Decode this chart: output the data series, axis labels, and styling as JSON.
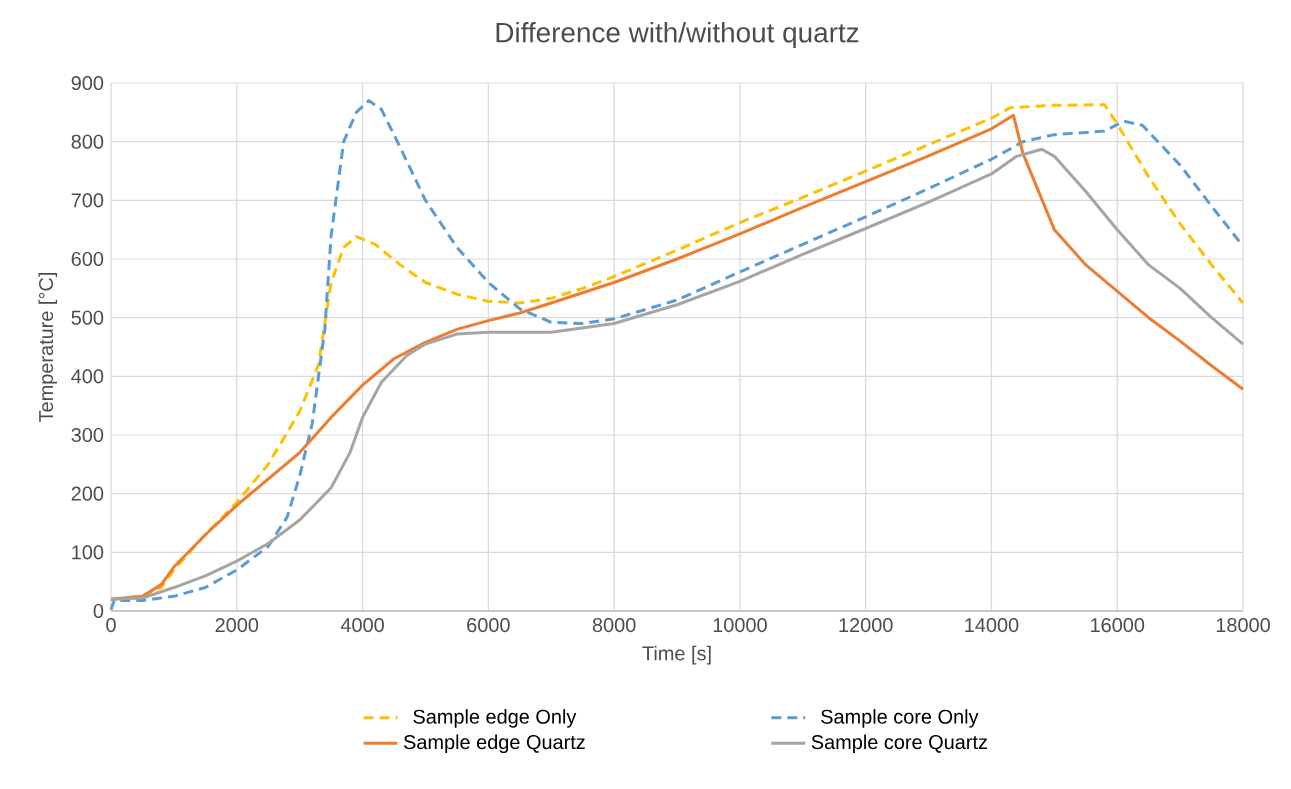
{
  "chart_data": {
    "type": "line",
    "title": "Difference with/without quartz",
    "xlabel": "Time [s]",
    "ylabel": "Temperature [°C]",
    "xlim": [
      0,
      18000
    ],
    "xticks": [
      0,
      2000,
      4000,
      6000,
      8000,
      10000,
      12000,
      14000,
      16000,
      18000
    ],
    "ylim": [
      0,
      900
    ],
    "yticks": [
      0,
      100,
      200,
      300,
      400,
      500,
      600,
      700,
      800,
      900
    ],
    "grid": true,
    "legend": "bottom",
    "marker": "none",
    "series": [
      {
        "name": "Sample edge Only",
        "color": "#ffc000",
        "line_style": "dashed",
        "x": [
          0,
          500,
          800,
          1000,
          1500,
          2000,
          2500,
          3000,
          3300,
          3500,
          3700,
          3900,
          4200,
          4600,
          5000,
          5500,
          6000,
          6500,
          7000,
          7500,
          8000,
          9000,
          10000,
          11000,
          12000,
          13000,
          14000,
          14300,
          15000,
          15800,
          16000,
          16500,
          17000,
          17500,
          18000
        ],
        "values": [
          20,
          25,
          40,
          70,
          130,
          185,
          250,
          340,
          420,
          560,
          620,
          638,
          625,
          590,
          560,
          540,
          528,
          525,
          533,
          550,
          570,
          615,
          662,
          705,
          750,
          795,
          840,
          858,
          862,
          863,
          830,
          740,
          660,
          590,
          525
        ]
      },
      {
        "name": "Sample core Only",
        "color": "#5b9bd5",
        "line_style": "dashed",
        "x": [
          0,
          50,
          500,
          1000,
          1500,
          2000,
          2500,
          2800,
          3000,
          3200,
          3400,
          3500,
          3700,
          3900,
          4100,
          4300,
          4600,
          5000,
          5500,
          6000,
          6500,
          7000,
          7500,
          8000,
          9000,
          10000,
          11000,
          12000,
          13000,
          14000,
          14500,
          15000,
          15800,
          16100,
          16400,
          17000,
          17500,
          18000
        ],
        "values": [
          2,
          18,
          18,
          25,
          40,
          70,
          110,
          160,
          230,
          320,
          480,
          640,
          800,
          850,
          870,
          855,
          790,
          700,
          620,
          560,
          515,
          492,
          490,
          498,
          530,
          578,
          625,
          672,
          720,
          770,
          800,
          812,
          818,
          835,
          828,
          760,
          690,
          622
        ]
      },
      {
        "name": "Sample edge Quartz",
        "color": "#ed7d31",
        "line_style": "solid",
        "x": [
          0,
          500,
          800,
          1000,
          1500,
          2000,
          2500,
          3000,
          3500,
          4000,
          4500,
          5000,
          5500,
          6000,
          6500,
          7000,
          8000,
          9000,
          10000,
          11000,
          12000,
          13000,
          14000,
          14350,
          14500,
          15000,
          15500,
          16000,
          16500,
          17000,
          17500,
          18000
        ],
        "values": [
          20,
          25,
          45,
          75,
          130,
          180,
          225,
          270,
          330,
          385,
          430,
          458,
          480,
          495,
          508,
          525,
          560,
          600,
          643,
          688,
          732,
          776,
          822,
          845,
          780,
          650,
          590,
          545,
          500,
          460,
          418,
          378
        ]
      },
      {
        "name": "Sample core Quartz",
        "color": "#a5a5a5",
        "line_style": "solid",
        "x": [
          0,
          500,
          1000,
          1500,
          2000,
          2500,
          3000,
          3500,
          3800,
          4000,
          4300,
          4700,
          5000,
          5500,
          6000,
          7000,
          8000,
          9000,
          10000,
          11000,
          12000,
          13000,
          14000,
          14400,
          14800,
          15000,
          15500,
          16000,
          16500,
          17000,
          17500,
          18000
        ],
        "values": [
          20,
          22,
          40,
          60,
          85,
          115,
          155,
          210,
          270,
          330,
          390,
          435,
          455,
          472,
          475,
          475,
          490,
          522,
          562,
          608,
          652,
          697,
          745,
          775,
          787,
          775,
          715,
          650,
          590,
          550,
          500,
          455
        ]
      }
    ]
  }
}
